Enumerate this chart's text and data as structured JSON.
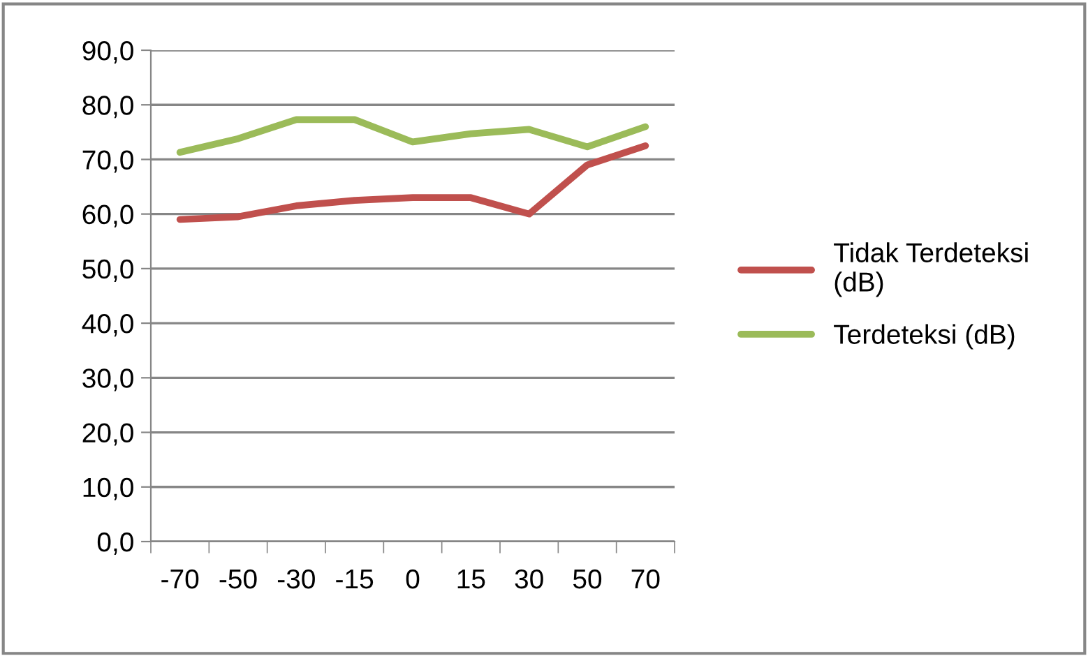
{
  "chart_data": {
    "type": "line",
    "categories": [
      "-70",
      "-50",
      "-30",
      "-15",
      "0",
      "15",
      "30",
      "50",
      "70"
    ],
    "series": [
      {
        "name": "Tidak Terdeteksi\n(dB)",
        "color": "#c0504d",
        "values": [
          59.0,
          59.5,
          61.5,
          62.5,
          63.0,
          63.0,
          60.0,
          69.0,
          72.5
        ]
      },
      {
        "name": "Terdeteksi (dB)",
        "color": "#9bbb59",
        "values": [
          71.3,
          73.8,
          77.3,
          77.3,
          73.2,
          74.7,
          75.5,
          72.3,
          76.0
        ]
      }
    ],
    "ylim": [
      0,
      90
    ],
    "yticks": [
      {
        "value": 0,
        "label": "0,0"
      },
      {
        "value": 10,
        "label": "10,0"
      },
      {
        "value": 20,
        "label": "20,0"
      },
      {
        "value": 30,
        "label": "30,0"
      },
      {
        "value": 40,
        "label": "40,0"
      },
      {
        "value": 50,
        "label": "50,0"
      },
      {
        "value": 60,
        "label": "60,0"
      },
      {
        "value": 70,
        "label": "70,0"
      },
      {
        "value": 80,
        "label": "80,0"
      },
      {
        "value": 90,
        "label": "90,0"
      }
    ],
    "grid": "y",
    "legend": "right",
    "marker": "none",
    "line_style": "solid"
  }
}
